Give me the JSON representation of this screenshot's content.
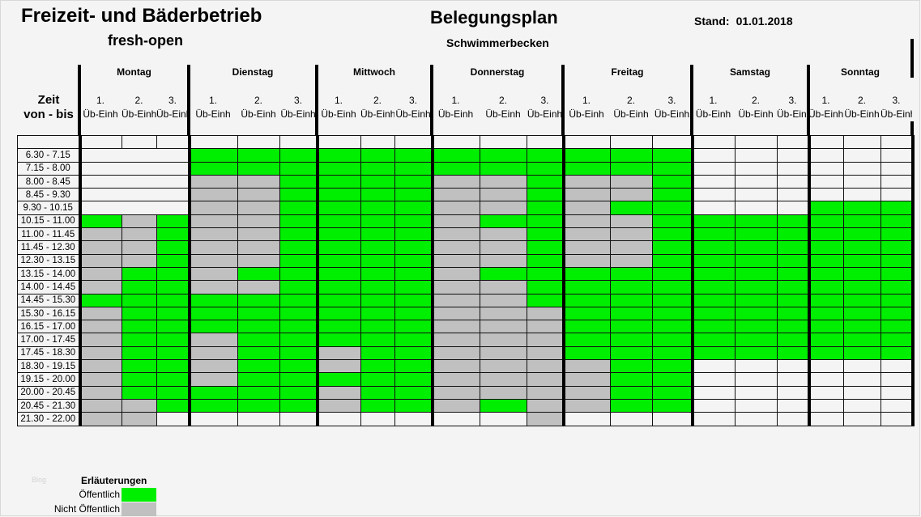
{
  "header": {
    "title": "Freizeit- und Bäderbetrieb",
    "subtitle": "fresh-open",
    "plan_title": "Belegungsplan",
    "plan_subtitle": "Schwimmerbecken",
    "stand_label": "Stand:",
    "stand_date": "01.01.2018"
  },
  "time_header": {
    "line1": "Zeit",
    "line2": "von - bis"
  },
  "unit_label": "Üb-Einh",
  "unit_numbers": [
    "1.",
    "2.",
    "3."
  ],
  "colors": {
    "public": "#00ee00",
    "non_public": "#c0c0c0",
    "free": "#f4f4f4"
  },
  "days": [
    {
      "name": "Montag"
    },
    {
      "name": "Dienstag"
    },
    {
      "name": "Mittwoch"
    },
    {
      "name": "Donnerstag"
    },
    {
      "name": "Freitag"
    },
    {
      "name": "Samstag"
    },
    {
      "name": "Sonntag"
    }
  ],
  "rows": [
    {
      "time": "6.30 - 7.15",
      "cells": [
        "www",
        "ggg",
        "ggg",
        "ggg",
        "ggg",
        "www",
        "www"
      ]
    },
    {
      "time": "7.15 - 8.00",
      "cells": [
        "www",
        "ggg",
        "ggg",
        "ggg",
        "ggg",
        "www",
        "www"
      ]
    },
    {
      "time": "8.00 - 8.45",
      "cells": [
        "www",
        "xxg",
        "ggg",
        "xxg",
        "xxg",
        "www",
        "www"
      ]
    },
    {
      "time": "8.45 - 9.30",
      "cells": [
        "www",
        "xxg",
        "ggg",
        "xxg",
        "xxg",
        "www",
        "www"
      ]
    },
    {
      "time": "9.30 - 10.15",
      "cells": [
        "www",
        "xxg",
        "ggg",
        "xxg",
        "xgg",
        "www",
        "ggg"
      ]
    },
    {
      "time": "10.15 - 11.00",
      "cells": [
        "gxg",
        "xxg",
        "ggg",
        "xgg",
        "xxg",
        "ggg",
        "ggg"
      ]
    },
    {
      "time": "11.00 - 11.45",
      "cells": [
        "xxg",
        "xxg",
        "ggg",
        "xxg",
        "xxg",
        "ggg",
        "ggg"
      ]
    },
    {
      "time": "11.45 - 12.30",
      "cells": [
        "xxg",
        "xxg",
        "ggg",
        "xxg",
        "xxg",
        "ggg",
        "ggg"
      ]
    },
    {
      "time": "12.30 - 13.15",
      "cells": [
        "xxg",
        "xxg",
        "ggg",
        "xxg",
        "xxg",
        "ggg",
        "ggg"
      ]
    },
    {
      "time": "13.15 - 14.00",
      "cells": [
        "xgg",
        "xgg",
        "ggg",
        "xgg",
        "ggg",
        "ggg",
        "ggg"
      ]
    },
    {
      "time": "14.00 - 14.45",
      "cells": [
        "xgg",
        "xxg",
        "ggg",
        "xxg",
        "ggg",
        "ggg",
        "ggg"
      ]
    },
    {
      "time": "14.45 - 15.30",
      "cells": [
        "ggg",
        "ggg",
        "ggg",
        "xxg",
        "ggg",
        "ggg",
        "ggg"
      ]
    },
    {
      "time": "15.30 - 16.15",
      "cells": [
        "xgg",
        "ggg",
        "ggg",
        "xxx",
        "ggg",
        "ggg",
        "ggg"
      ]
    },
    {
      "time": "16.15 - 17.00",
      "cells": [
        "xgg",
        "ggg",
        "ggg",
        "xxx",
        "ggg",
        "ggg",
        "ggg"
      ]
    },
    {
      "time": "17.00 - 17.45",
      "cells": [
        "xgg",
        "xgg",
        "ggg",
        "xxx",
        "ggg",
        "ggg",
        "ggg"
      ]
    },
    {
      "time": "17.45 - 18.30",
      "cells": [
        "xgg",
        "xgg",
        "xgg",
        "xxx",
        "ggg",
        "ggg",
        "ggg"
      ]
    },
    {
      "time": "18.30 - 19.15",
      "cells": [
        "xgg",
        "xgg",
        "xgg",
        "xxx",
        "xgg",
        "www",
        "www"
      ]
    },
    {
      "time": "19.15 - 20.00",
      "cells": [
        "xgg",
        "xgg",
        "ggg",
        "xxx",
        "xgg",
        "www",
        "www"
      ]
    },
    {
      "time": "20.00 - 20.45",
      "cells": [
        "xgg",
        "ggg",
        "xgg",
        "xxx",
        "xgg",
        "www",
        "www"
      ]
    },
    {
      "time": "20.45 - 21.30",
      "cells": [
        "xxg",
        "ggg",
        "xgg",
        "xgx",
        "xgg",
        "www",
        "www"
      ]
    },
    {
      "time": "21.30 - 22.00",
      "cells": [
        "xxw",
        "www",
        "www",
        "wwx",
        "www",
        "www",
        "www"
      ]
    }
  ],
  "legend": {
    "title": "Erläuterungen",
    "items": [
      {
        "label": "Öffentlich",
        "color": "#00ee00"
      },
      {
        "label": "Nicht Öffentlich",
        "color": "#c0c0c0"
      }
    ],
    "watermark": "Blog"
  }
}
